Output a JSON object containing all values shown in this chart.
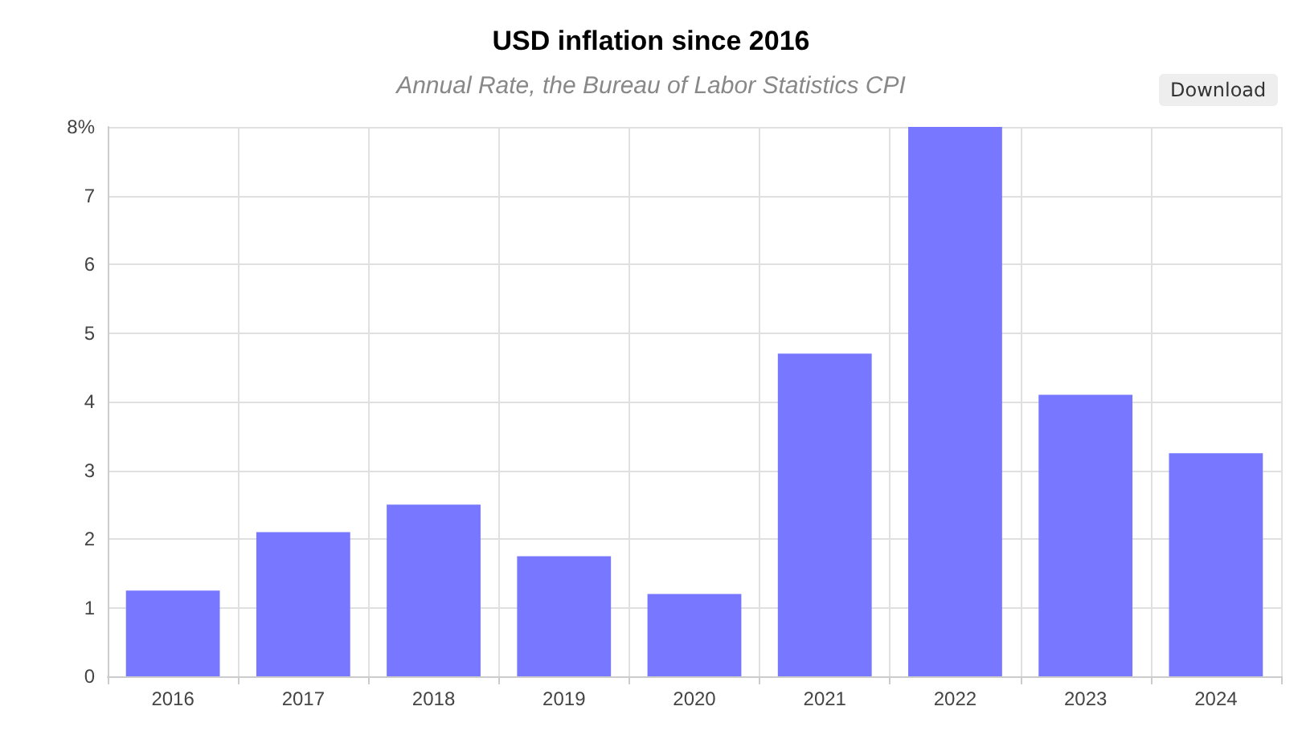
{
  "chart_data": {
    "type": "bar",
    "title": "USD inflation since 2016",
    "subtitle": "Annual Rate, the Bureau of Labor Statistics CPI",
    "categories": [
      "2016",
      "2017",
      "2018",
      "2019",
      "2020",
      "2021",
      "2022",
      "2023",
      "2024"
    ],
    "values": [
      1.25,
      2.1,
      2.5,
      1.75,
      1.2,
      4.7,
      8,
      4.1,
      3.25
    ],
    "color": "#7777ff",
    "ylim": [
      0,
      8
    ],
    "yticks": [
      0,
      1,
      2,
      3,
      4,
      5,
      6,
      7,
      {
        "value": 8,
        "label": "8%"
      }
    ],
    "grid": true,
    "annotations": [
      "Download"
    ]
  }
}
